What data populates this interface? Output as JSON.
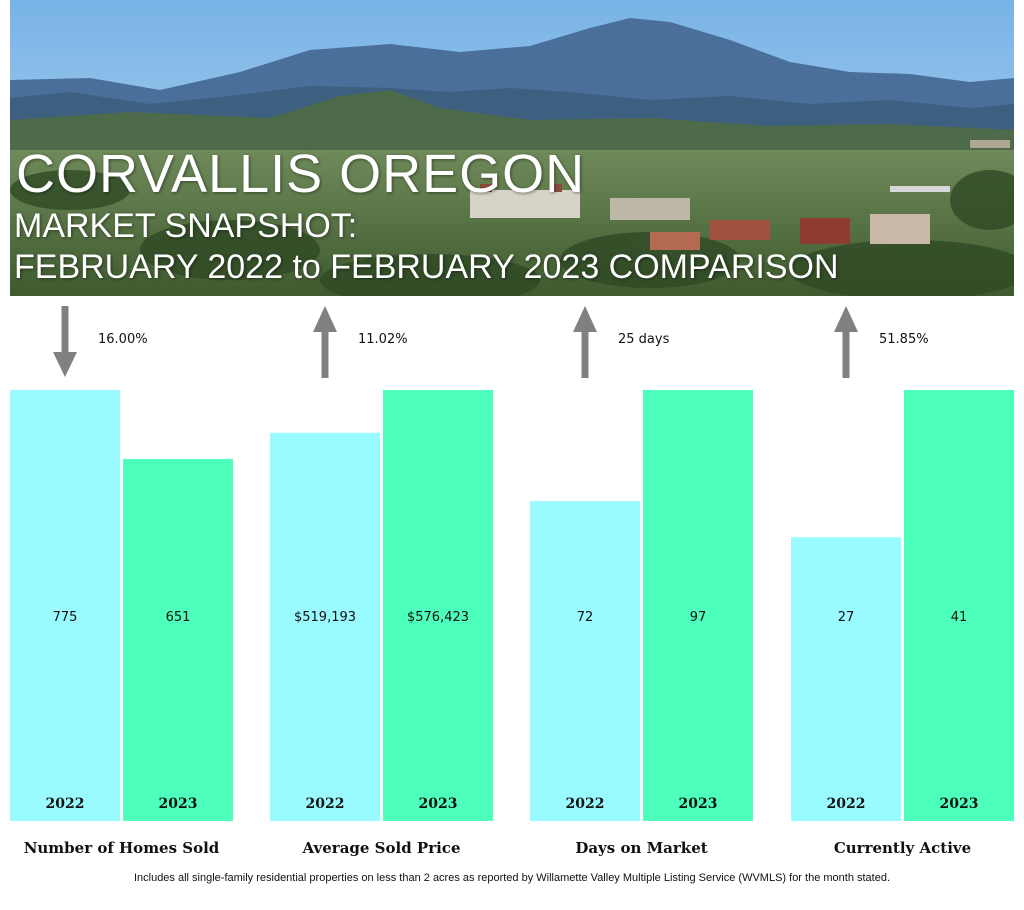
{
  "header": {
    "title": "CORVALLIS OREGON",
    "subtitle_line1": "MARKET SNAPSHOT:",
    "subtitle_line2": "FEBRUARY 2022 to FEBRUARY 2023 COMPARISON"
  },
  "colors": {
    "bar_2022": "#99FBFF",
    "bar_2023": "#4CFFBB",
    "arrow": "#808080"
  },
  "chart_data": [
    {
      "type": "bar",
      "title": "Number of Homes Sold",
      "categories": [
        "2022",
        "2023"
      ],
      "values": [
        775,
        651
      ],
      "value_labels": [
        "775",
        "651"
      ],
      "change_direction": "down",
      "change_label": "16.00%"
    },
    {
      "type": "bar",
      "title": "Average Sold Price",
      "categories": [
        "2022",
        "2023"
      ],
      "values": [
        519193,
        576423
      ],
      "value_labels": [
        "$519,193",
        "$576,423"
      ],
      "change_direction": "up",
      "change_label": "11.02%"
    },
    {
      "type": "bar",
      "title": "Days on Market",
      "categories": [
        "2022",
        "2023"
      ],
      "values": [
        72,
        97
      ],
      "value_labels": [
        "72",
        "97"
      ],
      "change_direction": "up",
      "change_label": "25 days"
    },
    {
      "type": "bar",
      "title": "Currently Active",
      "categories": [
        "2022",
        "2023"
      ],
      "values": [
        27,
        41
      ],
      "value_labels": [
        "27",
        "41"
      ],
      "change_direction": "up",
      "change_label": "51.85%"
    }
  ],
  "footnote": "Includes all single-family residential properties on less than 2 acres as reported by Willamette Valley Multiple Listing Service (WVMLS) for the month stated."
}
